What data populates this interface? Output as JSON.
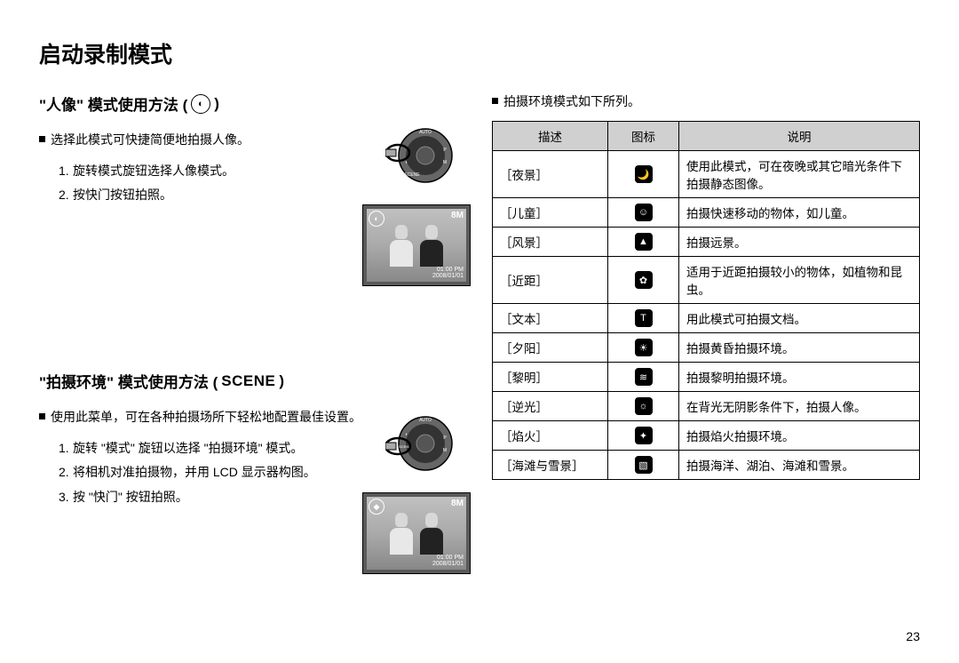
{
  "page_title": "启动录制模式",
  "page_number": "23",
  "portrait_section": {
    "title_prefix": "\"人像\" 模式使用方法 (",
    "title_suffix": ")",
    "mode_icon_glyph": "◐",
    "intro": "选择此模式可快捷简便地拍摄人像。",
    "steps": [
      "旋转模式旋钮选择人像模式。",
      "按快门按钮拍照。"
    ],
    "lcd": {
      "badge": "◐",
      "quality": "8M",
      "time": "01:00 PM",
      "date": "2008/01/01"
    }
  },
  "scene_section": {
    "title_prefix": "\"拍摄环境\" 模式使用方法 (",
    "title_label": "SCENE",
    "title_suffix": ")",
    "intro": "使用此菜单，可在各种拍摄场所下轻松地配置最佳设置。",
    "steps": [
      "旋转 \"模式\" 旋钮以选择 \"拍摄环境\" 模式。",
      "将相机对准拍摄物，并用 LCD 显示器构图。",
      "按 \"快门\" 按钮拍照。"
    ],
    "lcd": {
      "badge": "◆",
      "quality": "8M",
      "time": "01:00 PM",
      "date": "2008/01/01"
    }
  },
  "scene_table": {
    "intro": "拍摄环境模式如下所列。",
    "headers": {
      "desc": "描述",
      "icon": "图标",
      "explain": "说明"
    },
    "rows": [
      {
        "name": "［夜景］",
        "icon": "🌙",
        "explain": "使用此模式，可在夜晚或其它暗光条件下拍摄静态图像。"
      },
      {
        "name": "［儿童］",
        "icon": "☺",
        "explain": "拍摄快速移动的物体，如儿童。"
      },
      {
        "name": "［风景］",
        "icon": "▲",
        "explain": "拍摄远景。"
      },
      {
        "name": "［近距］",
        "icon": "✿",
        "explain": "适用于近距拍摄较小的物体，如植物和昆虫。"
      },
      {
        "name": "［文本］",
        "icon": "T",
        "explain": "用此模式可拍摄文档。"
      },
      {
        "name": "［夕阳］",
        "icon": "☀",
        "explain": "拍摄黄昏拍摄环境。"
      },
      {
        "name": "［黎明］",
        "icon": "≋",
        "explain": "拍摄黎明拍摄环境。"
      },
      {
        "name": "［逆光］",
        "icon": "☼",
        "explain": "在背光无阴影条件下，拍摄人像。"
      },
      {
        "name": "［焰火］",
        "icon": "✦",
        "explain": "拍摄焰火拍摄环境。"
      },
      {
        "name": "［海滩与雪景］",
        "icon": "▧",
        "explain": "拍摄海洋、湖泊、海滩和雪景。"
      }
    ]
  }
}
